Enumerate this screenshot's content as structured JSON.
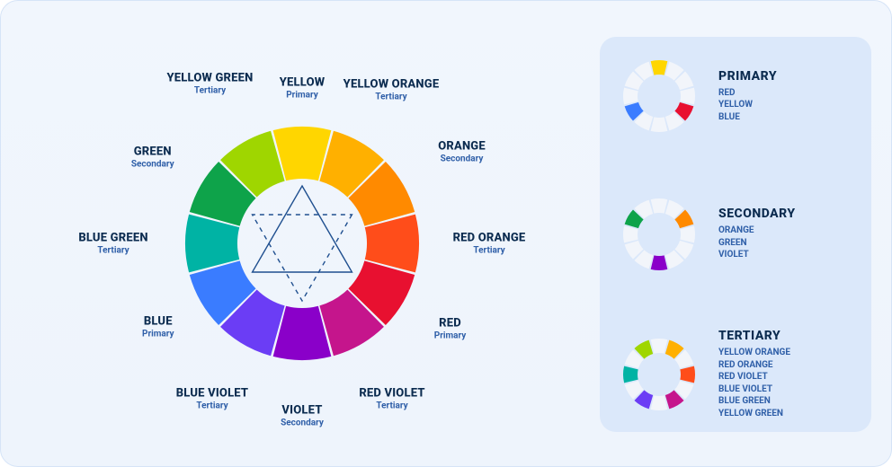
{
  "background_color": "#eef4fc",
  "panel_color": "#dbe8fa",
  "text_primary_color": "#0b2b4f",
  "text_accent_color": "#2f5fa8",
  "triangle_stroke": "#1f4f8f",
  "inactive_slice": "#f2f5fa",
  "wheel": {
    "outer_radius": 130,
    "inner_radius": 72,
    "slices": [
      {
        "id": "yellow",
        "name": "YELLOW",
        "type": "Primary",
        "color": "#ffd600"
      },
      {
        "id": "yellow-orange",
        "name": "YELLOW ORANGE",
        "type": "Tertiary",
        "color": "#ffb000"
      },
      {
        "id": "orange",
        "name": "ORANGE",
        "type": "Secondary",
        "color": "#ff8a00"
      },
      {
        "id": "red-orange",
        "name": "RED ORANGE",
        "type": "Tertiary",
        "color": "#ff4d1a"
      },
      {
        "id": "red",
        "name": "RED",
        "type": "Primary",
        "color": "#e81030"
      },
      {
        "id": "red-violet",
        "name": "RED VIOLET",
        "type": "Tertiary",
        "color": "#c5158c"
      },
      {
        "id": "violet",
        "name": "VIOLET",
        "type": "Secondary",
        "color": "#8a00c9"
      },
      {
        "id": "blue-violet",
        "name": "BLUE VIOLET",
        "type": "Tertiary",
        "color": "#6b3df5"
      },
      {
        "id": "blue",
        "name": "BLUE",
        "type": "Primary",
        "color": "#3a7cff"
      },
      {
        "id": "blue-green",
        "name": "BLUE GREEN",
        "type": "Tertiary",
        "color": "#00b3a4"
      },
      {
        "id": "green",
        "name": "GREEN",
        "type": "Secondary",
        "color": "#0ea34a"
      },
      {
        "id": "yellow-green",
        "name": "YELLOW GREEN",
        "type": "Tertiary",
        "color": "#9fd600"
      }
    ]
  },
  "legend": {
    "mini_outer": 40,
    "mini_inner": 24,
    "groups": [
      {
        "title": "PRIMARY",
        "items": [
          "RED",
          "YELLOW",
          "BLUE"
        ],
        "highlight_ids": [
          "red",
          "yellow",
          "blue"
        ]
      },
      {
        "title": "SECONDARY",
        "items": [
          "ORANGE",
          "GREEN",
          "VIOLET"
        ],
        "highlight_ids": [
          "orange",
          "green",
          "violet"
        ]
      },
      {
        "title": "TERTIARY",
        "items": [
          "YELLOW ORANGE",
          "RED ORANGE",
          "RED VIOLET",
          "BLUE VIOLET",
          "BLUE GREEN",
          "YELLOW GREEN"
        ],
        "highlight_ids": [
          "yellow-orange",
          "red-orange",
          "red-violet",
          "blue-violet",
          "blue-green",
          "yellow-green"
        ]
      }
    ]
  }
}
